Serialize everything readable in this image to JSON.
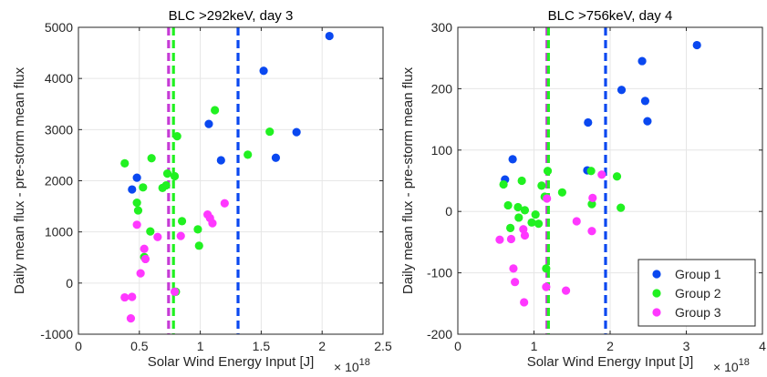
{
  "chart_data": [
    {
      "type": "scatter",
      "title": "BLC >292keV, day 3",
      "xlabel": "Solar Wind Energy Input [J]",
      "ylabel": "Daily mean flux - pre-storm mean flux",
      "x_exponent_base": "× 10",
      "x_exponent_power": "18",
      "xlim": [
        0,
        2.5
      ],
      "ylim": [
        -1000,
        5000
      ],
      "xticks": [
        0,
        0.5,
        1,
        1.5,
        2,
        2.5
      ],
      "xtick_labels": [
        "0",
        "0.5",
        "1",
        "1.5",
        "2",
        "2.5"
      ],
      "yticks": [
        -1000,
        0,
        1000,
        2000,
        3000,
        4000,
        5000
      ],
      "ytick_labels": [
        "-1000",
        "0",
        "1000",
        "2000",
        "3000",
        "4000",
        "5000"
      ],
      "grid": true,
      "vlines": [
        {
          "group": "Group 3",
          "x": 0.74
        },
        {
          "group": "Group 2",
          "x": 0.78
        },
        {
          "group": "Group 1",
          "x": 1.31
        }
      ],
      "series": [
        {
          "name": "Group 1",
          "points": [
            [
              0.44,
              1830
            ],
            [
              0.48,
              2060
            ],
            [
              1.07,
              3110
            ],
            [
              1.17,
              2400
            ],
            [
              1.52,
              4150
            ],
            [
              1.62,
              2450
            ],
            [
              1.79,
              2950
            ],
            [
              2.06,
              4830
            ]
          ]
        },
        {
          "name": "Group 2",
          "points": [
            [
              0.38,
              2340
            ],
            [
              0.48,
              1570
            ],
            [
              0.49,
              1420
            ],
            [
              0.53,
              1870
            ],
            [
              0.54,
              510
            ],
            [
              0.59,
              1010
            ],
            [
              0.6,
              2440
            ],
            [
              0.69,
              1860
            ],
            [
              0.72,
              1910
            ],
            [
              0.73,
              2140
            ],
            [
              0.79,
              2090
            ],
            [
              0.8,
              -170
            ],
            [
              0.81,
              2870
            ],
            [
              0.85,
              1210
            ],
            [
              0.98,
              1050
            ],
            [
              0.99,
              730
            ],
            [
              1.12,
              3380
            ],
            [
              1.39,
              2510
            ],
            [
              1.57,
              2960
            ]
          ]
        },
        {
          "name": "Group 3",
          "points": [
            [
              0.38,
              -280
            ],
            [
              0.43,
              -690
            ],
            [
              0.44,
              -270
            ],
            [
              0.48,
              1140
            ],
            [
              0.51,
              190
            ],
            [
              0.54,
              670
            ],
            [
              0.55,
              470
            ],
            [
              0.65,
              900
            ],
            [
              0.79,
              -170
            ],
            [
              0.84,
              920
            ],
            [
              1.06,
              1340
            ],
            [
              1.08,
              1270
            ],
            [
              1.1,
              1170
            ],
            [
              1.2,
              1560
            ]
          ]
        }
      ]
    },
    {
      "type": "scatter",
      "title": "BLC >756keV, day 4",
      "xlabel": "Solar Wind Energy Input [J]",
      "ylabel": "Daily mean flux - pre-storm mean flux",
      "x_exponent_base": "× 10",
      "x_exponent_power": "18",
      "xlim": [
        0,
        4
      ],
      "ylim": [
        -200,
        300
      ],
      "xticks": [
        0,
        1,
        2,
        3,
        4
      ],
      "xtick_labels": [
        "0",
        "1",
        "2",
        "3",
        "4"
      ],
      "yticks": [
        -200,
        -100,
        0,
        100,
        200,
        300
      ],
      "ytick_labels": [
        "-200",
        "-100",
        "0",
        "100",
        "200",
        "300"
      ],
      "grid": true,
      "vlines": [
        {
          "group": "Group 3",
          "x": 1.17
        },
        {
          "group": "Group 2",
          "x": 1.19
        },
        {
          "group": "Group 1",
          "x": 1.94
        }
      ],
      "legend": {
        "placement": "bottom-right",
        "entries": [
          "Group 1",
          "Group 2",
          "Group 3"
        ]
      },
      "series": [
        {
          "name": "Group 1",
          "points": [
            [
              0.62,
              52
            ],
            [
              0.72,
              85
            ],
            [
              1.7,
              67
            ],
            [
              1.71,
              145
            ],
            [
              2.15,
              198
            ],
            [
              2.42,
              245
            ],
            [
              2.46,
              180
            ],
            [
              2.49,
              147
            ],
            [
              3.14,
              271
            ]
          ]
        },
        {
          "name": "Group 2",
          "points": [
            [
              0.6,
              44
            ],
            [
              0.66,
              10
            ],
            [
              0.69,
              -27
            ],
            [
              0.79,
              7
            ],
            [
              0.8,
              -10
            ],
            [
              0.84,
              50
            ],
            [
              0.88,
              2
            ],
            [
              0.97,
              -18
            ],
            [
              1.02,
              -5
            ],
            [
              1.06,
              -20
            ],
            [
              1.1,
              42
            ],
            [
              1.14,
              24
            ],
            [
              1.16,
              -93
            ],
            [
              1.18,
              66
            ],
            [
              1.37,
              31
            ],
            [
              1.75,
              66
            ],
            [
              1.76,
              12
            ],
            [
              2.09,
              57
            ],
            [
              2.14,
              6
            ]
          ]
        },
        {
          "name": "Group 3",
          "points": [
            [
              0.55,
              -46
            ],
            [
              0.7,
              -45
            ],
            [
              0.73,
              -93
            ],
            [
              0.75,
              -115
            ],
            [
              0.86,
              -29
            ],
            [
              0.87,
              -148
            ],
            [
              0.88,
              -39
            ],
            [
              1.16,
              -123
            ],
            [
              1.17,
              21
            ],
            [
              1.42,
              -129
            ],
            [
              1.56,
              -16
            ],
            [
              1.76,
              -32
            ],
            [
              1.77,
              22
            ],
            [
              1.89,
              60
            ]
          ]
        }
      ]
    }
  ],
  "colors": {
    "Group 1": "#0a48f0",
    "Group 2": "#21f121",
    "Group 3": "#ff38ff",
    "vline_Group 1": "#0a48f0",
    "vline_Group 2": "#21f121",
    "vline_Group 3": "#c63bd6",
    "grid": "#e6e6e6",
    "axis": "#262626"
  }
}
